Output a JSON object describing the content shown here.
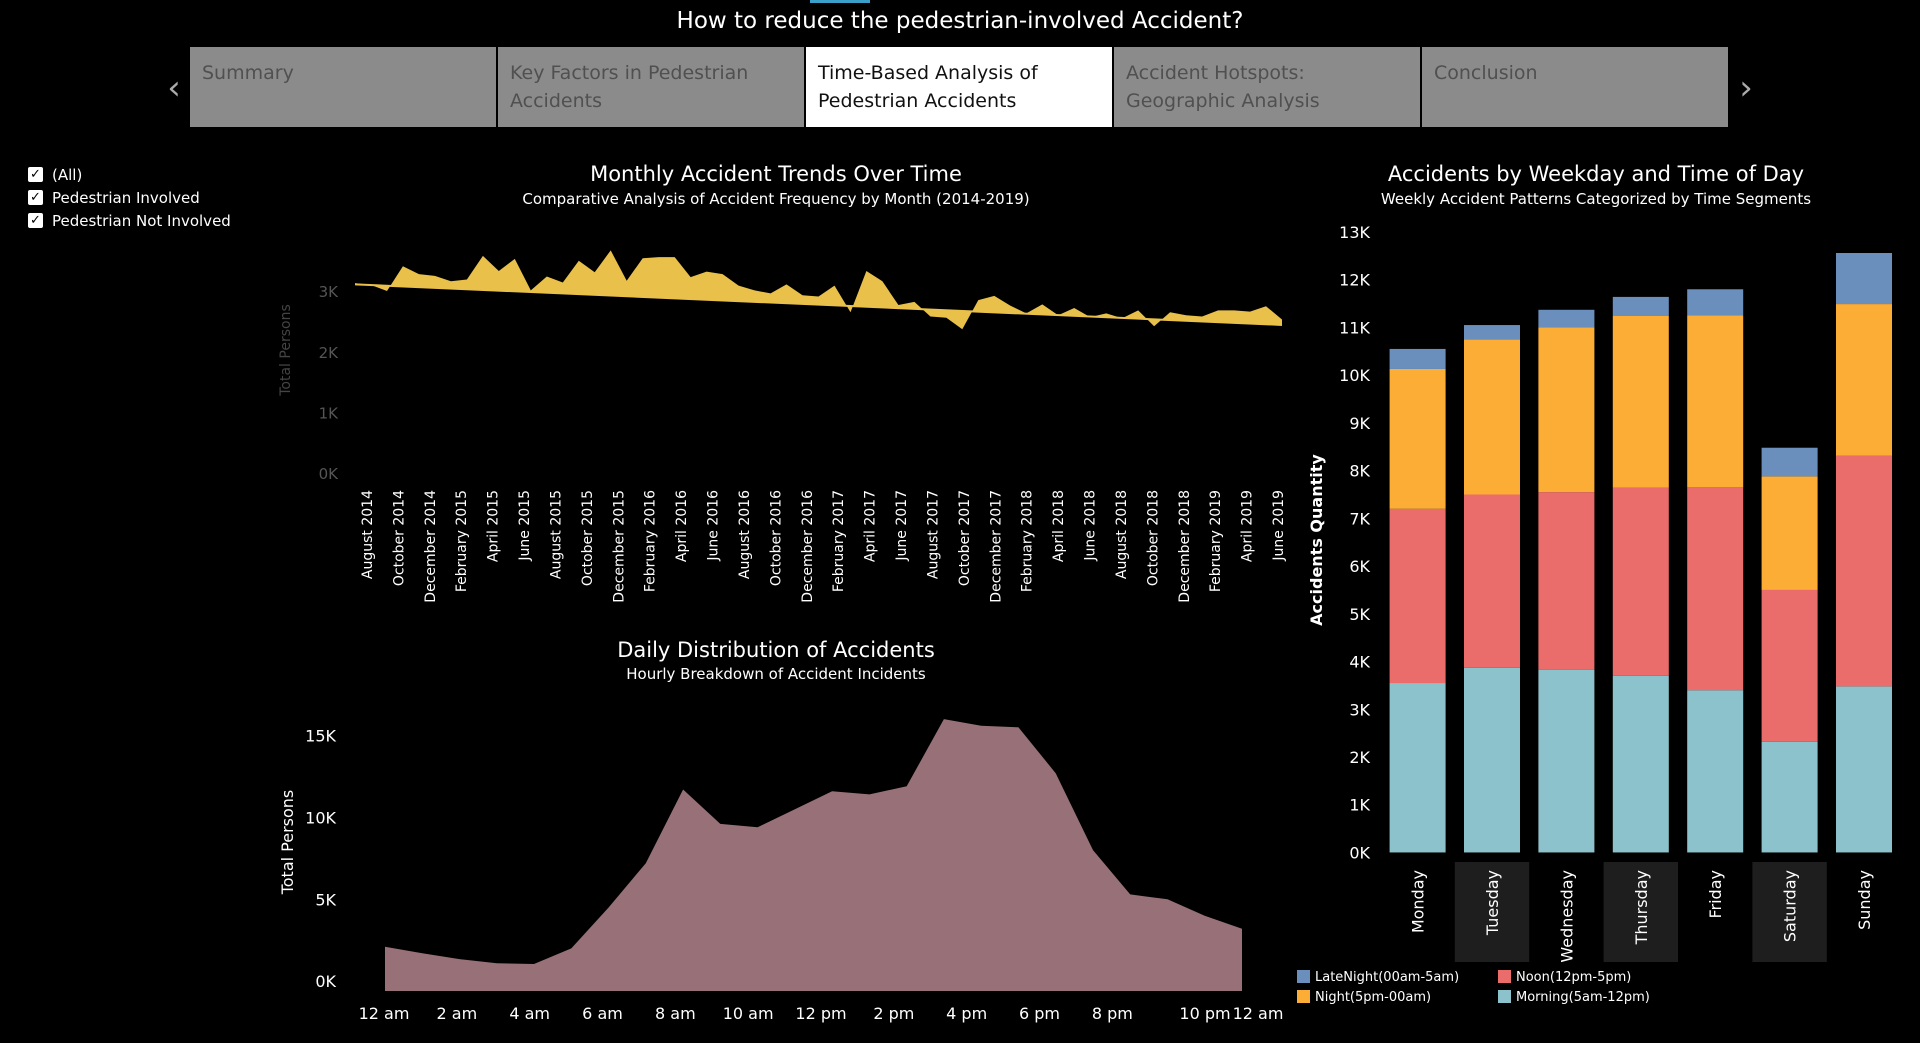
{
  "page_title": "How to reduce the pedestrian-involved Accident?",
  "nav": {
    "prev_icon": "chevron-left-icon",
    "next_icon": "chevron-right-icon",
    "prev_glyph": "‹",
    "next_glyph": "›"
  },
  "tabs": [
    {
      "label": "Summary",
      "active": false
    },
    {
      "label": "Key Factors in Pedestrian Accidents",
      "active": false
    },
    {
      "label": "Time-Based Analysis of Pedestrian Accidents",
      "active": true
    },
    {
      "label": "Accident Hotspots: Geographic Analysis",
      "active": false
    },
    {
      "label": "Conclusion",
      "active": false
    }
  ],
  "filters": [
    {
      "label": "(All)",
      "checked": true
    },
    {
      "label": "Pedestrian Involved",
      "checked": true
    },
    {
      "label": "Pedestrian Not Involved",
      "checked": true
    }
  ],
  "chart_data": [
    {
      "type": "area",
      "title": "Monthly Accident Trends Over Time",
      "subtitle": "Comparative Analysis of Accident Frequency by Month (2014-2019)",
      "ylabel": "Total Persons",
      "yticks": [
        {
          "v": 0,
          "label": "0K"
        },
        {
          "v": 1000,
          "label": "1K"
        },
        {
          "v": 2000,
          "label": "2K"
        },
        {
          "v": 3000,
          "label": "3K"
        }
      ],
      "ylim": [
        0,
        3400
      ],
      "color": "#e8c04a",
      "xtick_labels": [
        "August 2014",
        "October 2014",
        "December 2014",
        "February 2015",
        "April 2015",
        "June 2015",
        "August 2015",
        "October 2015",
        "December 2015",
        "February 2016",
        "April 2016",
        "June 2016",
        "August 2016",
        "October 2016",
        "December 2016",
        "February 2017",
        "April 2017",
        "June 2017",
        "August 2017",
        "October 2017",
        "December 2017",
        "February 2018",
        "April 2018",
        "June 2018",
        "August 2018",
        "October 2018",
        "December 2018",
        "February 2019",
        "April 2019",
        "June 2019"
      ],
      "values": [
        3150,
        3120,
        3020,
        3430,
        3300,
        3270,
        3180,
        3210,
        3600,
        3350,
        3550,
        3030,
        3260,
        3160,
        3520,
        3330,
        3690,
        3190,
        3560,
        3580,
        3580,
        3250,
        3340,
        3300,
        3110,
        3030,
        2980,
        3130,
        2950,
        2930,
        3110,
        2670,
        3350,
        3180,
        2790,
        2840,
        2600,
        2580,
        2390,
        2870,
        2940,
        2780,
        2650,
        2800,
        2620,
        2740,
        2590,
        2650,
        2570,
        2700,
        2440,
        2670,
        2620,
        2600,
        2700,
        2700,
        2680,
        2770,
        2550
      ],
      "trend": [
        3130,
        2460
      ]
    },
    {
      "type": "area",
      "title": "Daily Distribution of Accidents",
      "subtitle": "Hourly Breakdown of Accident Incidents",
      "ylabel": "Total Persons",
      "yticks": [
        {
          "v": 0,
          "label": "0K"
        },
        {
          "v": 5000,
          "label": "5K"
        },
        {
          "v": 10000,
          "label": "10K"
        },
        {
          "v": 15000,
          "label": "15K"
        }
      ],
      "ylim": [
        -600,
        16800
      ],
      "color": "#977078",
      "xtick_labels": [
        "12 am",
        "2 am",
        "4 am",
        "6 am",
        "8 am",
        "10 am",
        "12 pm",
        "2 pm",
        "4 pm",
        "6 pm",
        "8 pm",
        "10 pm",
        "12 am"
      ],
      "values": [
        2100,
        1700,
        1350,
        1100,
        1050,
        2000,
        4500,
        7200,
        11700,
        9600,
        9400,
        10500,
        11600,
        11400,
        11900,
        16000,
        15600,
        15500,
        12700,
        8000,
        5300,
        5000,
        4000,
        3200
      ]
    },
    {
      "type": "bar",
      "stacked": true,
      "title": "Accidents by Weekday and Time of Day",
      "subtitle": "Weekly Accident Patterns Categorized by Time Segments",
      "ylabel": "Accidents Quantity",
      "yticks": [
        {
          "v": 0,
          "label": "0K"
        },
        {
          "v": 1000,
          "label": "1K"
        },
        {
          "v": 2000,
          "label": "2K"
        },
        {
          "v": 3000,
          "label": "3K"
        },
        {
          "v": 4000,
          "label": "4K"
        },
        {
          "v": 5000,
          "label": "5K"
        },
        {
          "v": 6000,
          "label": "6K"
        },
        {
          "v": 7000,
          "label": "7K"
        },
        {
          "v": 8000,
          "label": "8K"
        },
        {
          "v": 9000,
          "label": "9K"
        },
        {
          "v": 10000,
          "label": "10K"
        },
        {
          "v": 11000,
          "label": "11K"
        },
        {
          "v": 12000,
          "label": "12K"
        },
        {
          "v": 13000,
          "label": "13K"
        }
      ],
      "ylim": [
        -200,
        13000
      ],
      "categories": [
        "Monday",
        "Tuesday",
        "Wednesday",
        "Thursday",
        "Friday",
        "Saturday",
        "Sunday"
      ],
      "series": [
        {
          "name": "Morning(5am-12pm)",
          "color": "#8cc2cb",
          "values": [
            3550,
            3870,
            3830,
            3700,
            3400,
            2320,
            3480
          ]
        },
        {
          "name": "Noon(12pm-5pm)",
          "color": "#eb6d6b",
          "values": [
            3650,
            3630,
            3720,
            3940,
            4250,
            3180,
            4830
          ]
        },
        {
          "name": "Night(5pm-00am)",
          "color": "#fcad36",
          "values": [
            2930,
            3250,
            3450,
            3600,
            3600,
            2380,
            3180
          ]
        },
        {
          "name": "LateNight(00am-5am)",
          "color": "#6b8fbc",
          "values": [
            420,
            300,
            370,
            400,
            550,
            600,
            1070
          ]
        }
      ],
      "legend_order": [
        "LateNight(00am-5am)",
        "Noon(12pm-5pm)",
        "Night(5pm-00am)",
        "Morning(5am-12pm)"
      ]
    }
  ]
}
